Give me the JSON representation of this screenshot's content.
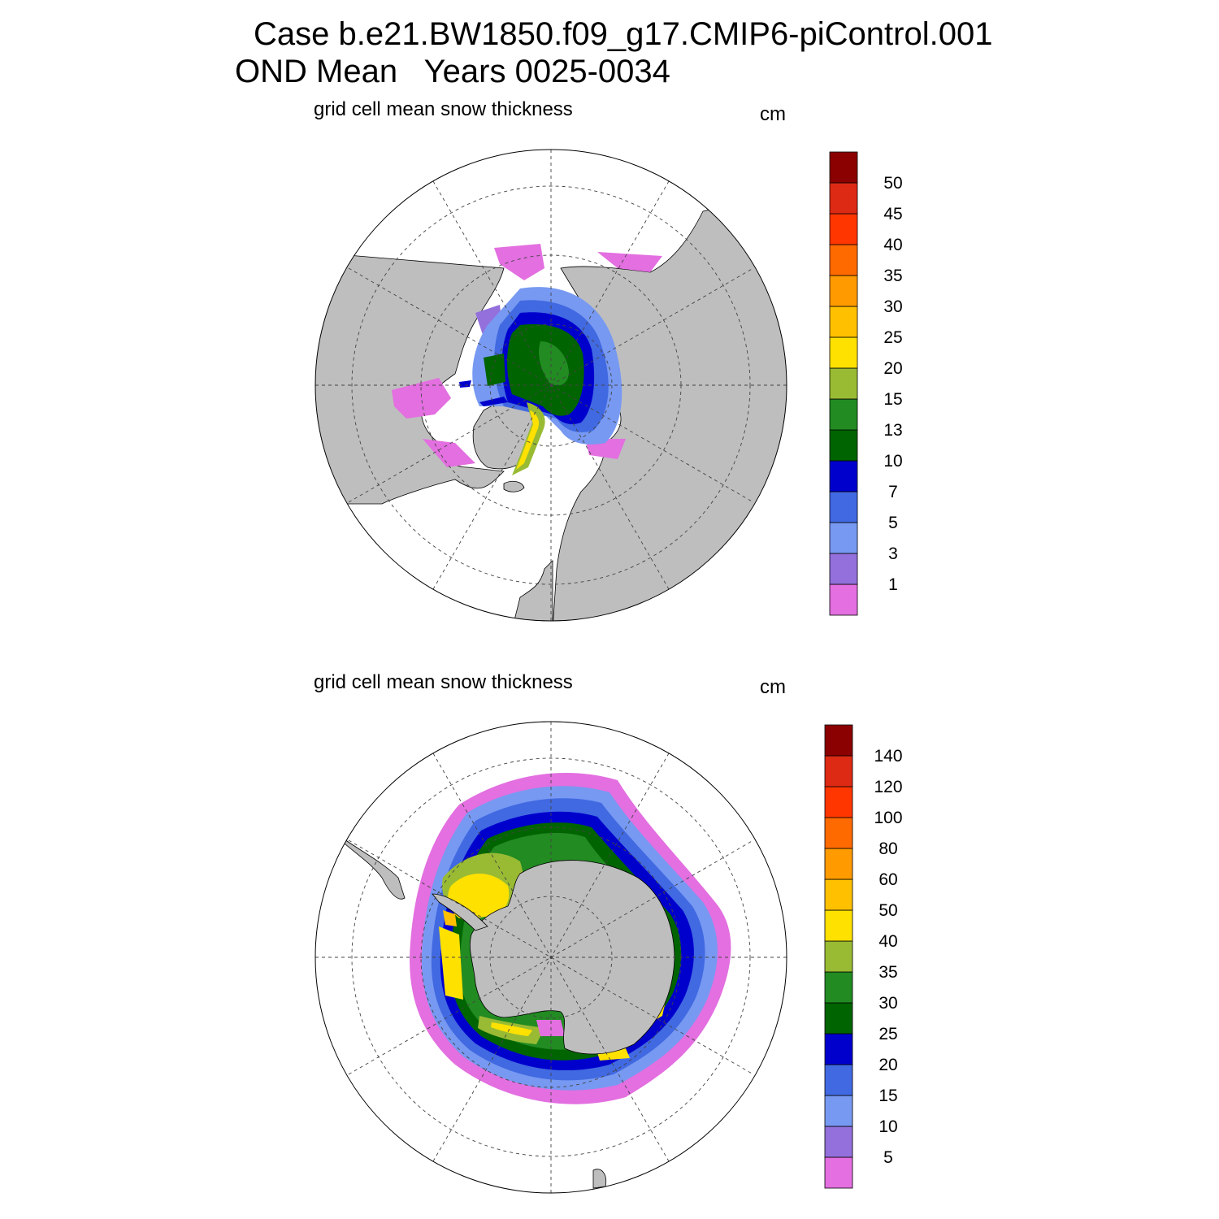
{
  "title": {
    "line1": "Case b.e21.BW1850.f09_g17.CMIP6-piControl.001",
    "line2": "OND Mean   Years 0025-0034"
  },
  "colors": {
    "land": "#bebebe",
    "ice_free": "#ffffff",
    "scale": [
      "#e36fe0",
      "#9370dc",
      "#7799f2",
      "#4169e1",
      "#0000cd",
      "#006400",
      "#228b22",
      "#99bb33",
      "#ffe100",
      "#ffc000",
      "#ff9a00",
      "#ff6a00",
      "#ff3600",
      "#dd2a14",
      "#8b0000"
    ]
  },
  "panels": [
    {
      "id": "arctic",
      "label": "grid cell mean snow thickness",
      "units": "cm",
      "colorbar_labels": [
        "1",
        "3",
        "5",
        "7",
        "10",
        "13",
        "15",
        "20",
        "25",
        "30",
        "35",
        "40",
        "45",
        "50"
      ]
    },
    {
      "id": "antarctic",
      "label": "grid cell mean snow thickness",
      "units": "cm",
      "colorbar_labels": [
        "5",
        "10",
        "15",
        "20",
        "25",
        "30",
        "35",
        "40",
        "50",
        "60",
        "80",
        "100",
        "120",
        "140"
      ]
    }
  ]
}
